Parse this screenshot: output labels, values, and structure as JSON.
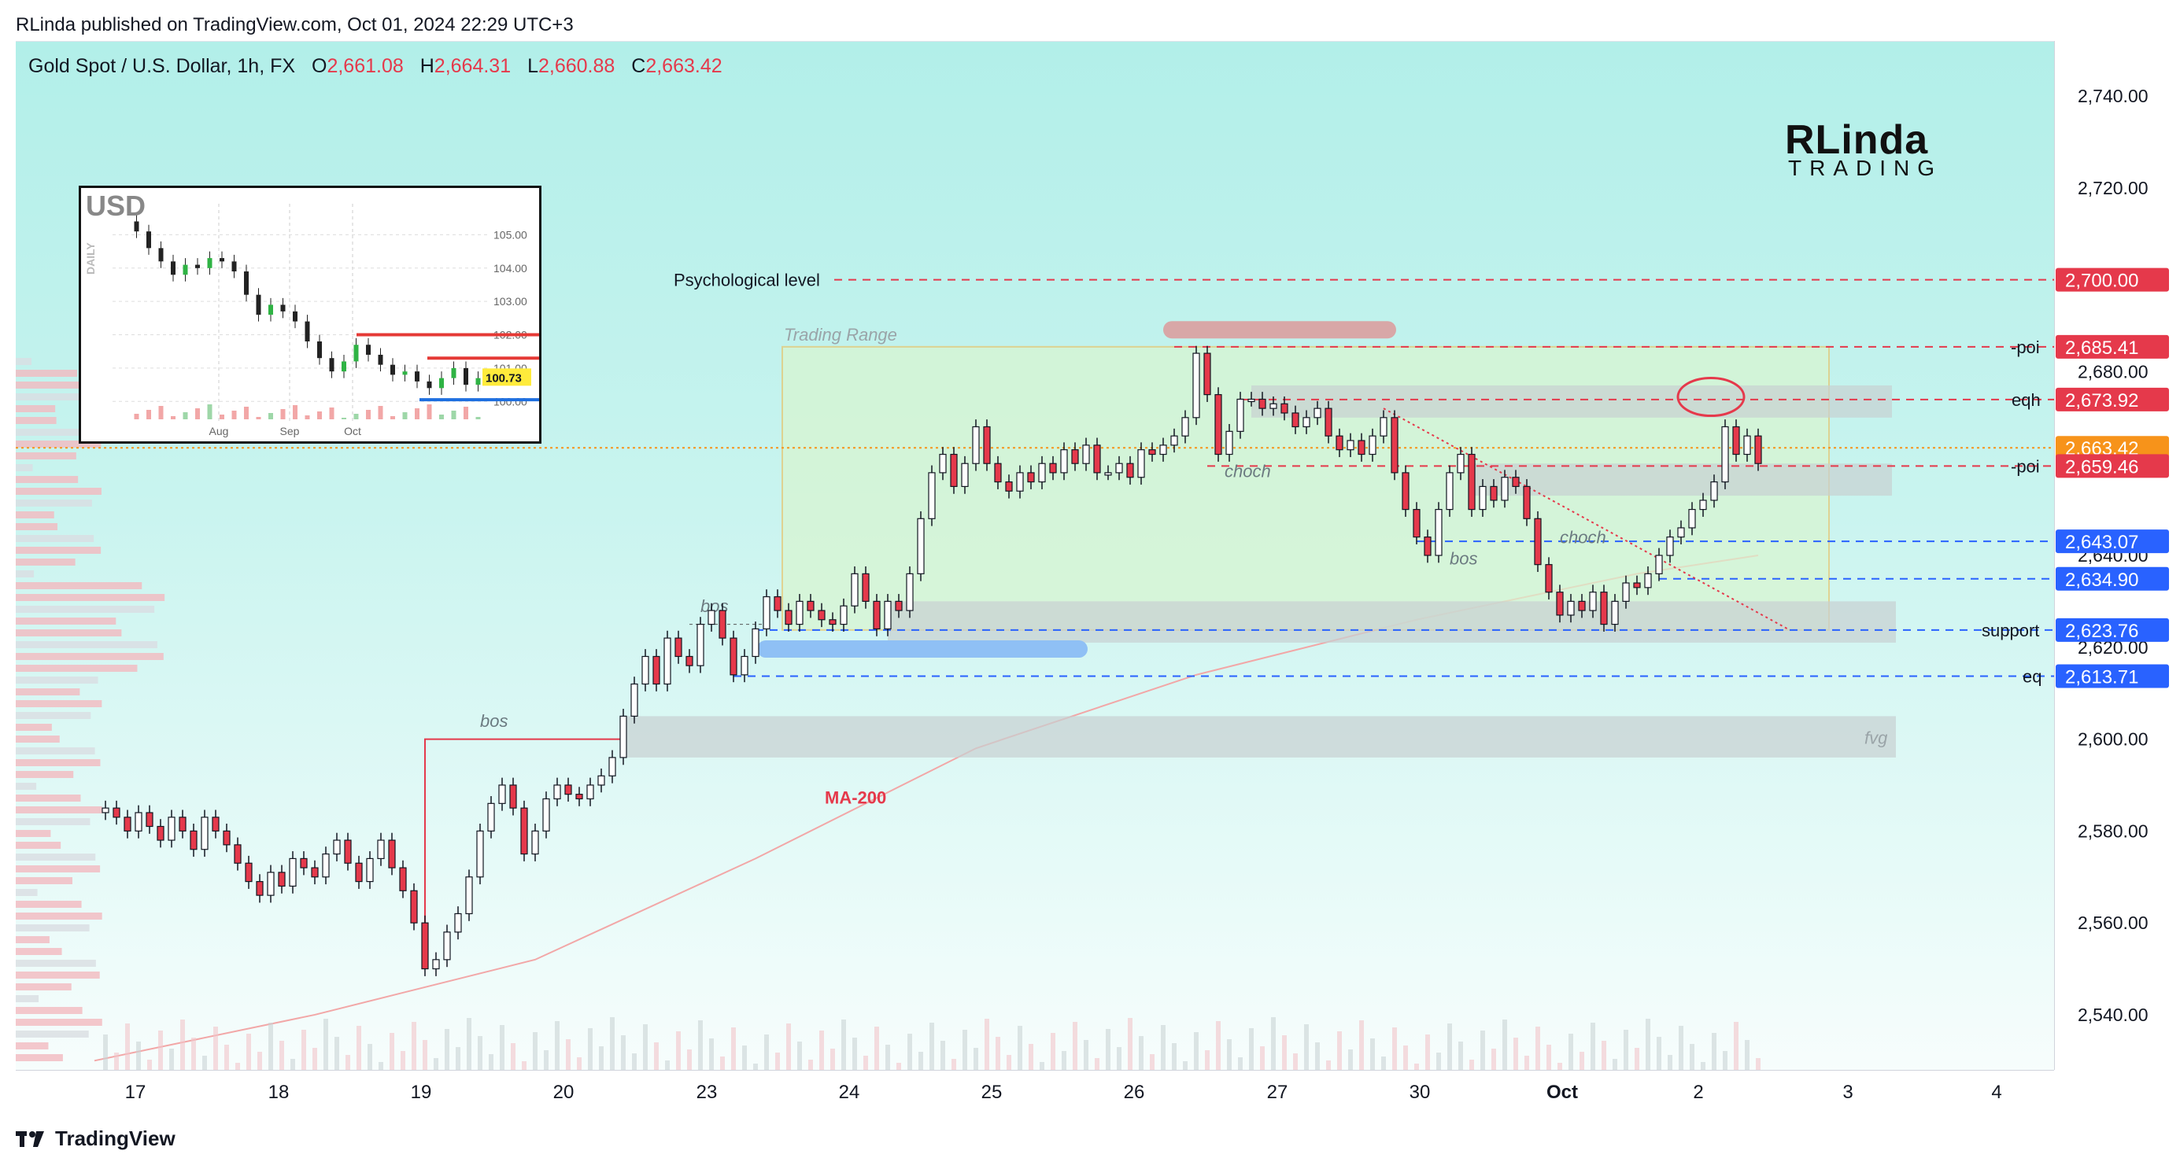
{
  "header": {
    "publisher": "RLinda published on TradingView.com, Oct 01, 2024 22:29 UTC+3"
  },
  "legend": {
    "symbol": "Gold Spot / U.S. Dollar, 1h, FX",
    "open_label": "O",
    "open": "2,661.08",
    "high_label": "H",
    "high": "2,664.31",
    "low_label": "L",
    "low": "2,660.88",
    "close_label": "C",
    "close": "2,663.42"
  },
  "logo": {
    "main": "RLinda",
    "sub": "TRADING"
  },
  "footer": {
    "brand": "TradingView"
  },
  "colors": {
    "up": "#ffffff",
    "down": "#e5394b",
    "candle_edge": "#131722",
    "red_line": "#e5394b",
    "blue_line": "#2962ff",
    "range_fill": "#d9f5d0",
    "range_border": "#e8c56b",
    "gray_zone": "#c8d0d2",
    "ma": "#f2a7a7",
    "current": "#f7931a"
  },
  "chart_data": {
    "type": "candlestick",
    "title": "Gold Spot / U.S. Dollar, 1h, FX",
    "xlabel": "",
    "ylabel": "",
    "ylim": [
      2528,
      2752
    ],
    "y_ticks": [
      "2,540.00",
      "2,560.00",
      "2,580.00",
      "2,600.00",
      "2,620.00",
      "2,640.00",
      "2,680.00",
      "2,720.00",
      "2,740.00"
    ],
    "y_tick_values": [
      2540,
      2560,
      2580,
      2600,
      2620,
      2640,
      2680,
      2720,
      2740
    ],
    "x_ticks": [
      "17",
      "18",
      "19",
      "20",
      "23",
      "24",
      "25",
      "26",
      "27",
      "30",
      "Oct",
      "2",
      "3",
      "4"
    ],
    "grid": false,
    "price_labels": [
      {
        "value": 2700.0,
        "text": "2,700.00",
        "color": "#e5394b"
      },
      {
        "value": 2685.41,
        "text": "2,685.41",
        "color": "#e5394b"
      },
      {
        "value": 2673.92,
        "text": "2,673.92",
        "color": "#e5394b"
      },
      {
        "value": 2663.42,
        "text": "2,663.42",
        "color": "#f7931a"
      },
      {
        "value": 2659.46,
        "text": "2,659.46",
        "color": "#e5394b"
      },
      {
        "value": 2643.07,
        "text": "2,643.07",
        "color": "#2962ff"
      },
      {
        "value": 2634.9,
        "text": "2,634.90",
        "color": "#2962ff"
      },
      {
        "value": 2623.76,
        "text": "2,623.76",
        "color": "#2962ff"
      },
      {
        "value": 2613.71,
        "text": "2,613.71",
        "color": "#2962ff"
      }
    ],
    "annotations": {
      "psychological": "Psychological level",
      "trading_range": "Trading Range",
      "poi_top": "-poi",
      "eqh": "eqh",
      "poi_bottom": "-poi",
      "support": "support",
      "eq": "eq",
      "fvg": "fvg",
      "ma200": "MA-200",
      "bos1": "bos",
      "bos2": "bos",
      "bos3": "bos",
      "choch1": "choch",
      "choch2": "choch"
    },
    "price_path": [
      [
        0,
        2584
      ],
      [
        1,
        2585
      ],
      [
        2,
        2583
      ],
      [
        3,
        2580
      ],
      [
        4,
        2584
      ],
      [
        5,
        2581
      ],
      [
        6,
        2578
      ],
      [
        7,
        2583
      ],
      [
        8,
        2580
      ],
      [
        9,
        2576
      ],
      [
        10,
        2583
      ],
      [
        11,
        2580
      ],
      [
        12,
        2577
      ],
      [
        13,
        2573
      ],
      [
        14,
        2569
      ],
      [
        15,
        2566
      ],
      [
        16,
        2571
      ],
      [
        17,
        2568
      ],
      [
        18,
        2574
      ],
      [
        19,
        2572
      ],
      [
        20,
        2570
      ],
      [
        21,
        2575
      ],
      [
        22,
        2578
      ],
      [
        23,
        2573
      ],
      [
        24,
        2569
      ],
      [
        25,
        2574
      ],
      [
        26,
        2578
      ],
      [
        27,
        2572
      ],
      [
        28,
        2567
      ],
      [
        29,
        2560
      ],
      [
        30,
        2550
      ],
      [
        31,
        2552
      ],
      [
        32,
        2558
      ],
      [
        33,
        2562
      ],
      [
        34,
        2570
      ],
      [
        35,
        2580
      ],
      [
        36,
        2586
      ],
      [
        37,
        2590
      ],
      [
        38,
        2585
      ],
      [
        39,
        2575
      ],
      [
        40,
        2580
      ],
      [
        41,
        2587
      ],
      [
        42,
        2590
      ],
      [
        43,
        2588
      ],
      [
        44,
        2587
      ],
      [
        45,
        2590
      ],
      [
        46,
        2592
      ],
      [
        47,
        2596
      ],
      [
        48,
        2605
      ],
      [
        49,
        2612
      ],
      [
        50,
        2618
      ],
      [
        51,
        2612
      ],
      [
        52,
        2622
      ],
      [
        53,
        2618
      ],
      [
        54,
        2616
      ],
      [
        55,
        2625
      ],
      [
        56,
        2628
      ],
      [
        57,
        2622
      ],
      [
        58,
        2614
      ],
      [
        59,
        2618
      ],
      [
        60,
        2624
      ],
      [
        61,
        2631
      ],
      [
        62,
        2628
      ],
      [
        63,
        2625
      ],
      [
        64,
        2630
      ],
      [
        65,
        2628
      ],
      [
        66,
        2626
      ],
      [
        67,
        2625
      ],
      [
        68,
        2629
      ],
      [
        69,
        2636
      ],
      [
        70,
        2630
      ],
      [
        71,
        2624
      ],
      [
        72,
        2630
      ],
      [
        73,
        2628
      ],
      [
        74,
        2636
      ],
      [
        75,
        2648
      ],
      [
        76,
        2658
      ],
      [
        77,
        2662
      ],
      [
        78,
        2655
      ],
      [
        79,
        2660
      ],
      [
        80,
        2668
      ],
      [
        81,
        2660
      ],
      [
        82,
        2656
      ],
      [
        83,
        2654
      ],
      [
        84,
        2658
      ],
      [
        85,
        2656
      ],
      [
        86,
        2660
      ],
      [
        87,
        2658
      ],
      [
        88,
        2663
      ],
      [
        89,
        2660
      ],
      [
        90,
        2664
      ],
      [
        91,
        2658
      ],
      [
        92,
        2658
      ],
      [
        93,
        2660
      ],
      [
        94,
        2657
      ],
      [
        95,
        2663
      ],
      [
        96,
        2662
      ],
      [
        97,
        2664
      ],
      [
        98,
        2666
      ],
      [
        99,
        2670
      ],
      [
        100,
        2684
      ],
      [
        101,
        2675
      ],
      [
        102,
        2662
      ],
      [
        103,
        2667
      ],
      [
        104,
        2674
      ],
      [
        105,
        2674
      ],
      [
        106,
        2672
      ],
      [
        107,
        2673
      ],
      [
        108,
        2671
      ],
      [
        109,
        2668
      ],
      [
        110,
        2670
      ],
      [
        111,
        2672
      ],
      [
        112,
        2666
      ],
      [
        113,
        2663
      ],
      [
        114,
        2665
      ],
      [
        115,
        2662
      ],
      [
        116,
        2666
      ],
      [
        117,
        2670
      ],
      [
        118,
        2658
      ],
      [
        119,
        2650
      ],
      [
        120,
        2644
      ],
      [
        121,
        2640
      ],
      [
        122,
        2650
      ],
      [
        123,
        2658
      ],
      [
        124,
        2662
      ],
      [
        125,
        2650
      ],
      [
        126,
        2655
      ],
      [
        127,
        2652
      ],
      [
        128,
        2657
      ],
      [
        129,
        2655
      ],
      [
        130,
        2648
      ],
      [
        131,
        2638
      ],
      [
        132,
        2632
      ],
      [
        133,
        2627
      ],
      [
        134,
        2630
      ],
      [
        135,
        2628
      ],
      [
        136,
        2632
      ],
      [
        137,
        2625
      ],
      [
        138,
        2630
      ],
      [
        139,
        2634
      ],
      [
        140,
        2633
      ],
      [
        141,
        2636
      ],
      [
        142,
        2640
      ],
      [
        143,
        2644
      ],
      [
        144,
        2646
      ],
      [
        145,
        2650
      ],
      [
        146,
        2652
      ],
      [
        147,
        2656
      ],
      [
        148,
        2668
      ],
      [
        149,
        2662
      ],
      [
        150,
        2666
      ],
      [
        151,
        2660
      ]
    ],
    "ma200": [
      [
        0,
        2530
      ],
      [
        20,
        2540
      ],
      [
        40,
        2552
      ],
      [
        60,
        2574
      ],
      [
        80,
        2598
      ],
      [
        100,
        2614
      ],
      [
        120,
        2626
      ],
      [
        140,
        2636
      ],
      [
        151,
        2640
      ]
    ],
    "inset": {
      "title": "USD",
      "period": "DAILY",
      "y_ticks": [
        "105.00",
        "104.00",
        "103.00",
        "102.00",
        "101.00",
        "100.00"
      ],
      "x_ticks": [
        "Aug",
        "Sep",
        "Oct"
      ],
      "last": "100.73",
      "path": [
        105.4,
        105.1,
        104.6,
        104.2,
        103.8,
        104.1,
        104.0,
        104.3,
        104.2,
        103.9,
        103.2,
        102.6,
        102.9,
        102.7,
        102.4,
        101.8,
        101.3,
        100.9,
        101.2,
        101.7,
        101.4,
        101.1,
        100.8,
        100.9,
        100.6,
        100.4,
        100.7,
        101.0,
        100.5,
        100.7
      ]
    }
  }
}
